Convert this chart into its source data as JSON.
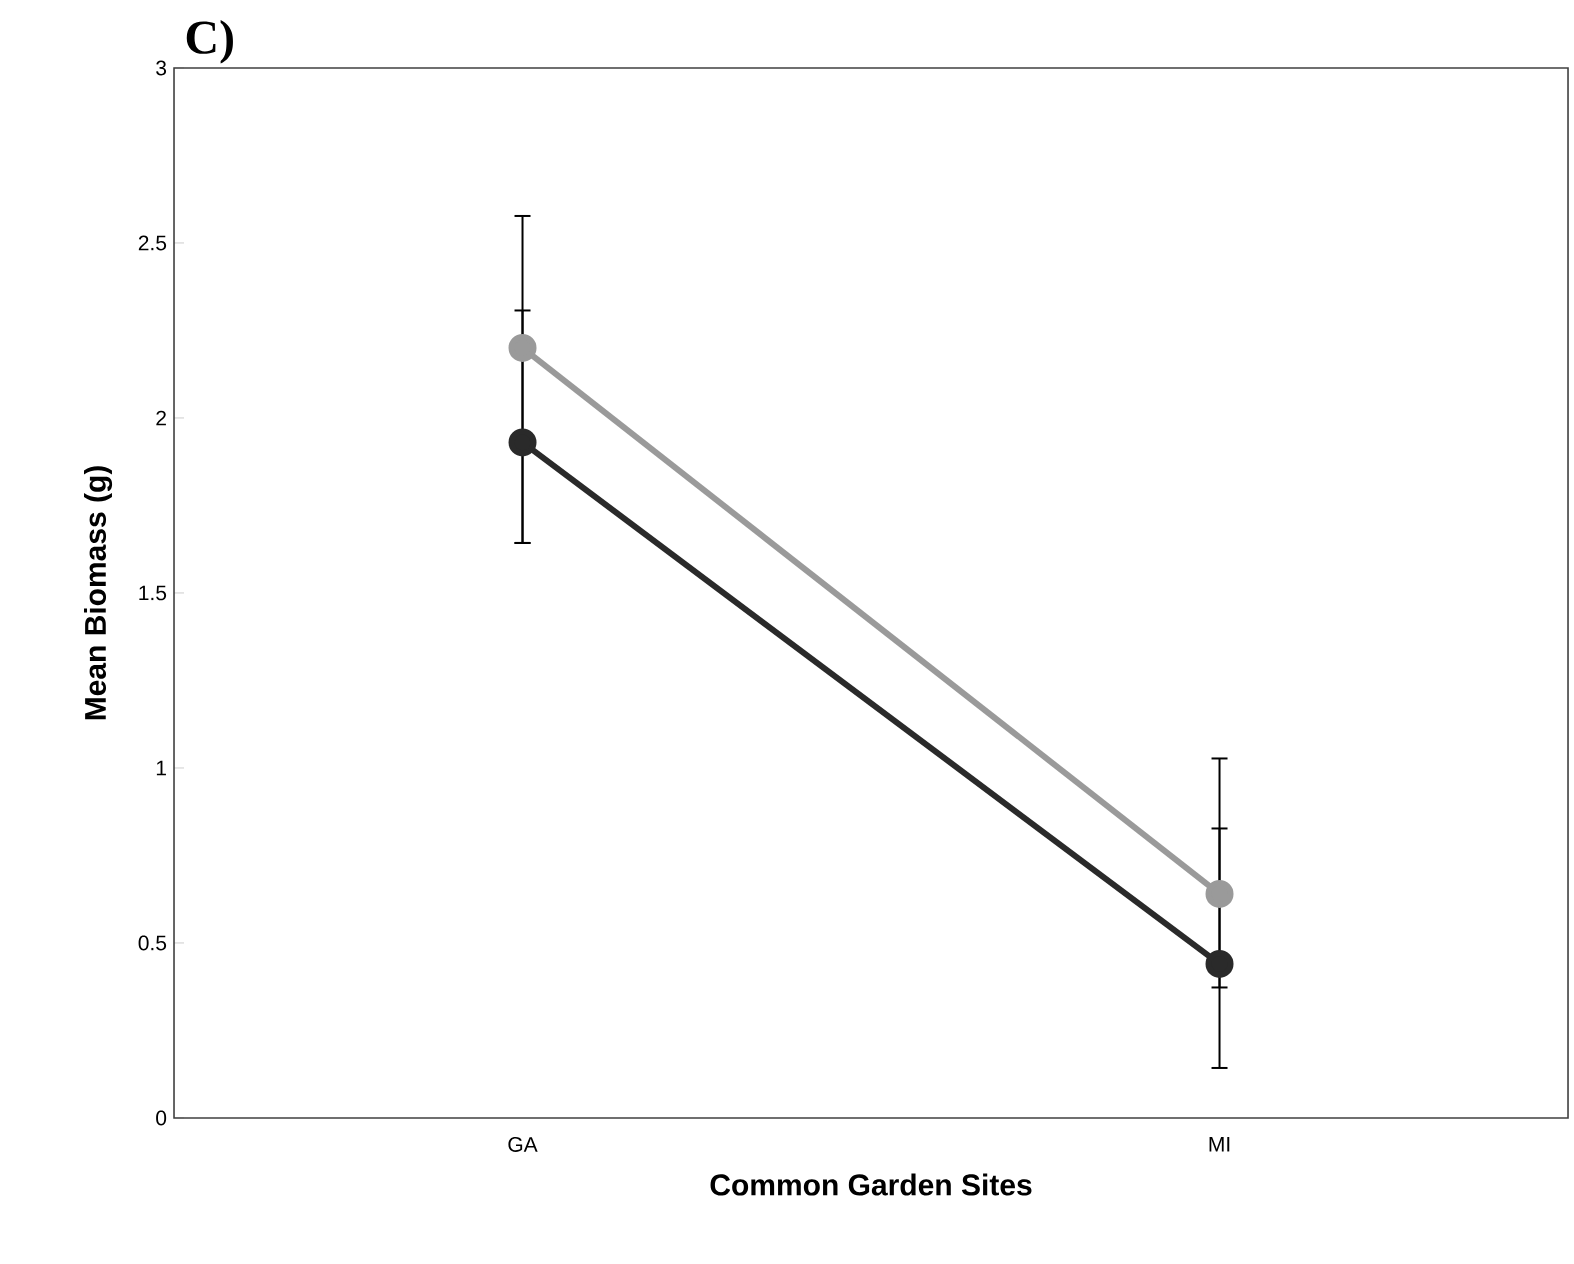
{
  "chart_data": {
    "type": "line",
    "title": "C)",
    "xlabel": "Common Garden Sites",
    "ylabel": "Mean Biomass (g)",
    "categories": [
      "GA",
      "MI"
    ],
    "series": [
      {
        "color": "#9a9a9a",
        "values": [
          2.2,
          0.64
        ],
        "errors": [
          [
            1.64,
            2.58
          ],
          [
            0.37,
            1.03
          ]
        ]
      },
      {
        "color": "#2a2a2a",
        "values": [
          1.93,
          0.44
        ],
        "errors": [
          [
            1.64,
            2.31
          ],
          [
            0.14,
            0.83
          ]
        ]
      }
    ],
    "ylim": [
      0,
      3
    ],
    "yticks": [
      0,
      0.5,
      1,
      1.5,
      2,
      2.5,
      3
    ],
    "grid": false,
    "legend": false,
    "marker": "circle",
    "line_style": "solid"
  }
}
